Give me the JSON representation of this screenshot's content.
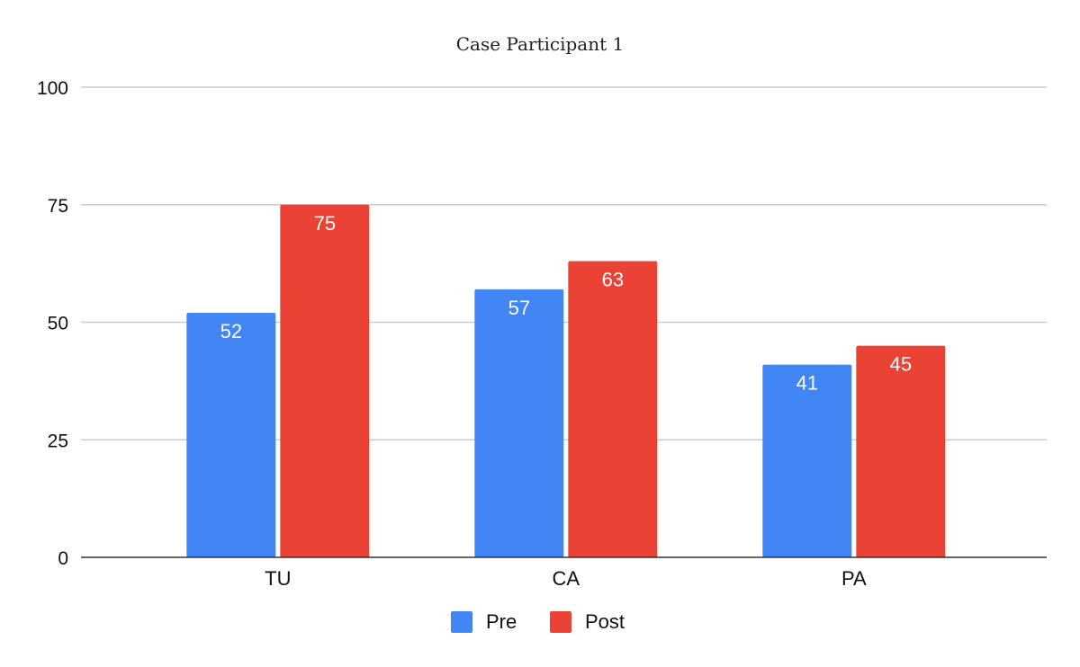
{
  "chart_data": {
    "type": "bar",
    "title": "Case Participant 1",
    "categories": [
      "TU",
      "CA",
      "PA"
    ],
    "series": [
      {
        "name": "Pre",
        "values": [
          52,
          57,
          41
        ],
        "color": "#4285F4"
      },
      {
        "name": "Post",
        "values": [
          75,
          63,
          45
        ],
        "color": "#EA4335"
      }
    ],
    "ylim": [
      0,
      100
    ],
    "yticks": [
      0,
      25,
      50,
      75,
      100
    ],
    "grid": true,
    "gridline_color": "#cccccc",
    "legend_position": "bottom",
    "data_labels": true
  }
}
